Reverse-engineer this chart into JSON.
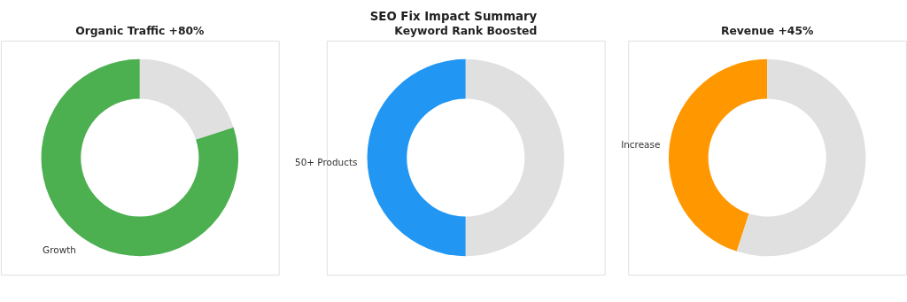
{
  "chart_data": [
    {
      "type": "donut",
      "title": "Organic Traffic +80%",
      "annotations": [
        "SEO Fix Impact Summary"
      ],
      "categories": [
        "Growth",
        null
      ],
      "values": [
        80,
        20
      ],
      "colors": [
        "#4caf50",
        "#e0e0e0"
      ]
    },
    {
      "type": "donut",
      "title": "Keyword Rank Boosted",
      "categories": [
        "50+ Products",
        null
      ],
      "values": [
        50,
        50
      ],
      "colors": [
        "#2196f3",
        "#e0e0e0"
      ]
    },
    {
      "type": "donut",
      "title": "Revenue +45%",
      "categories": [
        "Increase",
        null
      ],
      "values": [
        45,
        55
      ],
      "colors": [
        "#ff9800",
        "#e0e0e0"
      ]
    }
  ]
}
